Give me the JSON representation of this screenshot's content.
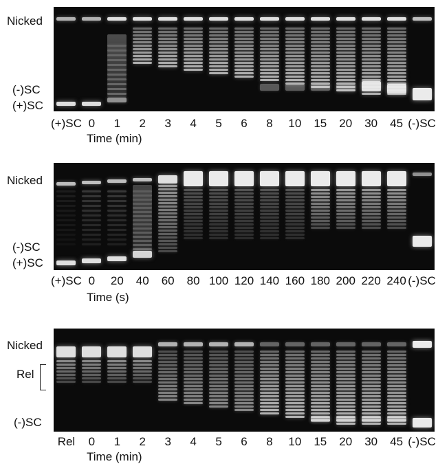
{
  "figure": {
    "panels": [
      {
        "id": "panel-1",
        "band_labels": {
          "nicked": "Nicked",
          "neg_sc": "(-)SC",
          "pos_sc": "(+)SC"
        },
        "lanes": [
          "(+)SC",
          "0",
          "1",
          "2",
          "3",
          "4",
          "5",
          "6",
          "8",
          "10",
          "15",
          "20",
          "30",
          "45",
          "(-)SC"
        ],
        "axis_title": "Time (min)"
      },
      {
        "id": "panel-2",
        "band_labels": {
          "nicked": "Nicked",
          "neg_sc": "(-)SC",
          "pos_sc": "(+)SC"
        },
        "lanes": [
          "(+)SC",
          "0",
          "20",
          "40",
          "60",
          "80",
          "100",
          "120",
          "140",
          "160",
          "180",
          "200",
          "220",
          "240",
          "(-)SC"
        ],
        "axis_title": "Time (s)"
      },
      {
        "id": "panel-3",
        "band_labels": {
          "nicked": "Nicked",
          "rel": "Rel",
          "neg_sc": "(-)SC"
        },
        "lanes": [
          "Rel",
          "0",
          "1",
          "2",
          "3",
          "4",
          "5",
          "6",
          "8",
          "10",
          "15",
          "20",
          "30",
          "45",
          "(-)SC"
        ],
        "axis_title": "Time (min)"
      }
    ]
  }
}
